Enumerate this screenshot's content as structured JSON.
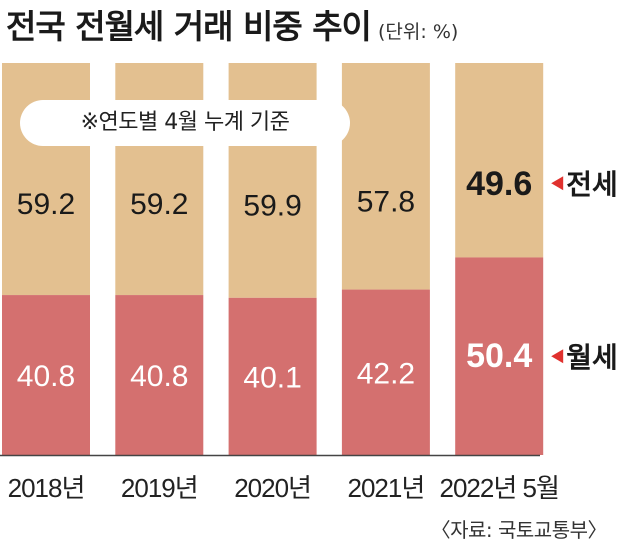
{
  "header": {
    "title": "전국 전월세 거래 비중 추이",
    "unit": "(단위: %)"
  },
  "note": "※연도별 4월 누계 기준",
  "source": "〈자료: 국토교통부〉",
  "chart_data": {
    "type": "bar",
    "stacked": true,
    "categories": [
      "2018년",
      "2019년",
      "2020년",
      "2021년",
      "2022년 5월"
    ],
    "series": [
      {
        "name": "월세",
        "values": [
          40.8,
          40.8,
          40.1,
          42.2,
          50.4
        ],
        "color": "#d4706f"
      },
      {
        "name": "전세",
        "values": [
          59.2,
          59.2,
          59.9,
          57.8,
          49.6
        ],
        "color": "#e3c090"
      }
    ],
    "value_labels": {
      "월세": [
        "40.8",
        "40.8",
        "40.1",
        "42.2",
        "50.4"
      ],
      "전세": [
        "59.2",
        "59.2",
        "59.9",
        "57.8",
        "49.6"
      ]
    },
    "ylim": [
      0,
      100
    ],
    "highlight_index": 4,
    "legend": "right"
  },
  "colors": {
    "jeonse": "#e3c090",
    "wolse": "#d4706f",
    "marker": "#e0312e",
    "axis": "#444444"
  }
}
